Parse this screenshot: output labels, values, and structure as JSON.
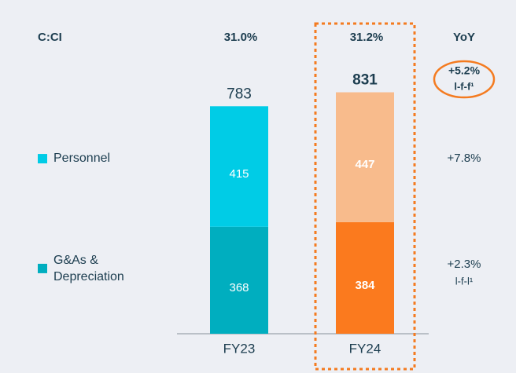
{
  "chart_data": {
    "type": "stacked_bar",
    "categories": [
      "FY23",
      "FY24"
    ],
    "series": [
      {
        "name": "G&As & Depreciation",
        "values": [
          368,
          384
        ],
        "colors": [
          "#00aebf",
          "#fb7a1e"
        ]
      },
      {
        "name": "Personnel",
        "values": [
          415,
          447
        ],
        "colors": [
          "#00cce6",
          "#f8bb8c"
        ]
      }
    ],
    "totals": [
      783,
      831
    ],
    "ylim": [
      0,
      1000
    ],
    "ratio_row": {
      "label": "C:CI",
      "values": [
        "31.0%",
        "31.2%"
      ]
    },
    "yoy": {
      "header": "YoY",
      "total": {
        "value": "+5.2%",
        "note": "l-f-f¹"
      },
      "rows": [
        {
          "value": "+2.3%",
          "note": "l-f-l¹"
        },
        {
          "value": "+7.8%"
        }
      ]
    }
  }
}
